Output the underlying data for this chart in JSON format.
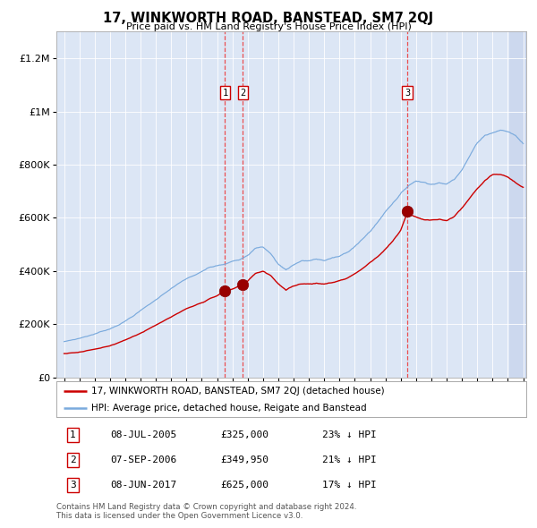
{
  "title": "17, WINKWORTH ROAD, BANSTEAD, SM7 2QJ",
  "subtitle": "Price paid vs. HM Land Registry's House Price Index (HPI)",
  "hpi_label": "HPI: Average price, detached house, Reigate and Banstead",
  "property_label": "17, WINKWORTH ROAD, BANSTEAD, SM7 2QJ (detached house)",
  "hpi_color": "#7aaadd",
  "property_color": "#cc0000",
  "marker_color": "#990000",
  "background_color": "#ffffff",
  "plot_bg_color": "#dce6f5",
  "grid_color": "#ffffff",
  "ylim": [
    0,
    1300000
  ],
  "yticks": [
    0,
    200000,
    400000,
    600000,
    800000,
    1000000,
    1200000
  ],
  "ytick_labels": [
    "£0",
    "£200K",
    "£400K",
    "£600K",
    "£800K",
    "£1M",
    "£1.2M"
  ],
  "sale1_date": 2005.52,
  "sale1_price": 325000,
  "sale1_label": "1",
  "sale1_date_str": "08-JUL-2005",
  "sale1_pct": "23%",
  "sale2_date": 2006.68,
  "sale2_price": 349950,
  "sale2_label": "2",
  "sale2_date_str": "07-SEP-2006",
  "sale2_pct": "21%",
  "sale3_date": 2017.43,
  "sale3_price": 625000,
  "sale3_label": "3",
  "sale3_date_str": "08-JUN-2017",
  "sale3_pct": "17%",
  "footer": "Contains HM Land Registry data © Crown copyright and database right 2024.\nThis data is licensed under the Open Government Licence v3.0.",
  "xmin": 1995,
  "xmax": 2025,
  "hpi_keypoints": [
    [
      1995.0,
      135000
    ],
    [
      1996.0,
      148000
    ],
    [
      1997.0,
      165000
    ],
    [
      1998.0,
      185000
    ],
    [
      1999.0,
      215000
    ],
    [
      2000.0,
      255000
    ],
    [
      2001.0,
      295000
    ],
    [
      2002.0,
      340000
    ],
    [
      2003.0,
      375000
    ],
    [
      2004.0,
      400000
    ],
    [
      2004.5,
      415000
    ],
    [
      2005.0,
      420000
    ],
    [
      2005.5,
      425000
    ],
    [
      2006.0,
      435000
    ],
    [
      2006.5,
      445000
    ],
    [
      2007.0,
      465000
    ],
    [
      2007.5,
      490000
    ],
    [
      2008.0,
      495000
    ],
    [
      2008.5,
      470000
    ],
    [
      2009.0,
      430000
    ],
    [
      2009.5,
      410000
    ],
    [
      2010.0,
      430000
    ],
    [
      2010.5,
      445000
    ],
    [
      2011.0,
      445000
    ],
    [
      2011.5,
      450000
    ],
    [
      2012.0,
      445000
    ],
    [
      2012.5,
      455000
    ],
    [
      2013.0,
      460000
    ],
    [
      2013.5,
      475000
    ],
    [
      2014.0,
      500000
    ],
    [
      2014.5,
      525000
    ],
    [
      2015.0,
      555000
    ],
    [
      2015.5,
      590000
    ],
    [
      2016.0,
      630000
    ],
    [
      2016.5,
      665000
    ],
    [
      2017.0,
      700000
    ],
    [
      2017.5,
      730000
    ],
    [
      2018.0,
      750000
    ],
    [
      2018.5,
      745000
    ],
    [
      2019.0,
      740000
    ],
    [
      2019.5,
      745000
    ],
    [
      2020.0,
      740000
    ],
    [
      2020.5,
      760000
    ],
    [
      2021.0,
      800000
    ],
    [
      2021.5,
      850000
    ],
    [
      2022.0,
      900000
    ],
    [
      2022.5,
      930000
    ],
    [
      2023.0,
      940000
    ],
    [
      2023.5,
      950000
    ],
    [
      2024.0,
      945000
    ],
    [
      2024.5,
      930000
    ],
    [
      2025.0,
      900000
    ]
  ],
  "prop_keypoints": [
    [
      1995.0,
      90000
    ],
    [
      1996.0,
      98000
    ],
    [
      1997.0,
      108000
    ],
    [
      1998.0,
      122000
    ],
    [
      1999.0,
      145000
    ],
    [
      2000.0,
      172000
    ],
    [
      2001.0,
      200000
    ],
    [
      2002.0,
      230000
    ],
    [
      2003.0,
      258000
    ],
    [
      2004.0,
      280000
    ],
    [
      2004.5,
      295000
    ],
    [
      2005.0,
      305000
    ],
    [
      2005.52,
      325000
    ],
    [
      2006.0,
      330000
    ],
    [
      2006.68,
      349950
    ],
    [
      2007.0,
      360000
    ],
    [
      2007.5,
      390000
    ],
    [
      2008.0,
      400000
    ],
    [
      2008.5,
      385000
    ],
    [
      2009.0,
      355000
    ],
    [
      2009.5,
      330000
    ],
    [
      2010.0,
      345000
    ],
    [
      2010.5,
      355000
    ],
    [
      2011.0,
      355000
    ],
    [
      2011.5,
      358000
    ],
    [
      2012.0,
      355000
    ],
    [
      2012.5,
      360000
    ],
    [
      2013.0,
      368000
    ],
    [
      2013.5,
      378000
    ],
    [
      2014.0,
      395000
    ],
    [
      2014.5,
      415000
    ],
    [
      2015.0,
      438000
    ],
    [
      2015.5,
      462000
    ],
    [
      2016.0,
      490000
    ],
    [
      2016.5,
      520000
    ],
    [
      2017.0,
      558000
    ],
    [
      2017.43,
      625000
    ],
    [
      2017.5,
      620000
    ],
    [
      2018.0,
      610000
    ],
    [
      2018.5,
      600000
    ],
    [
      2019.0,
      598000
    ],
    [
      2019.5,
      600000
    ],
    [
      2020.0,
      595000
    ],
    [
      2020.5,
      610000
    ],
    [
      2021.0,
      640000
    ],
    [
      2021.5,
      675000
    ],
    [
      2022.0,
      710000
    ],
    [
      2022.5,
      740000
    ],
    [
      2023.0,
      760000
    ],
    [
      2023.5,
      760000
    ],
    [
      2024.0,
      750000
    ],
    [
      2024.5,
      730000
    ],
    [
      2025.0,
      710000
    ]
  ]
}
